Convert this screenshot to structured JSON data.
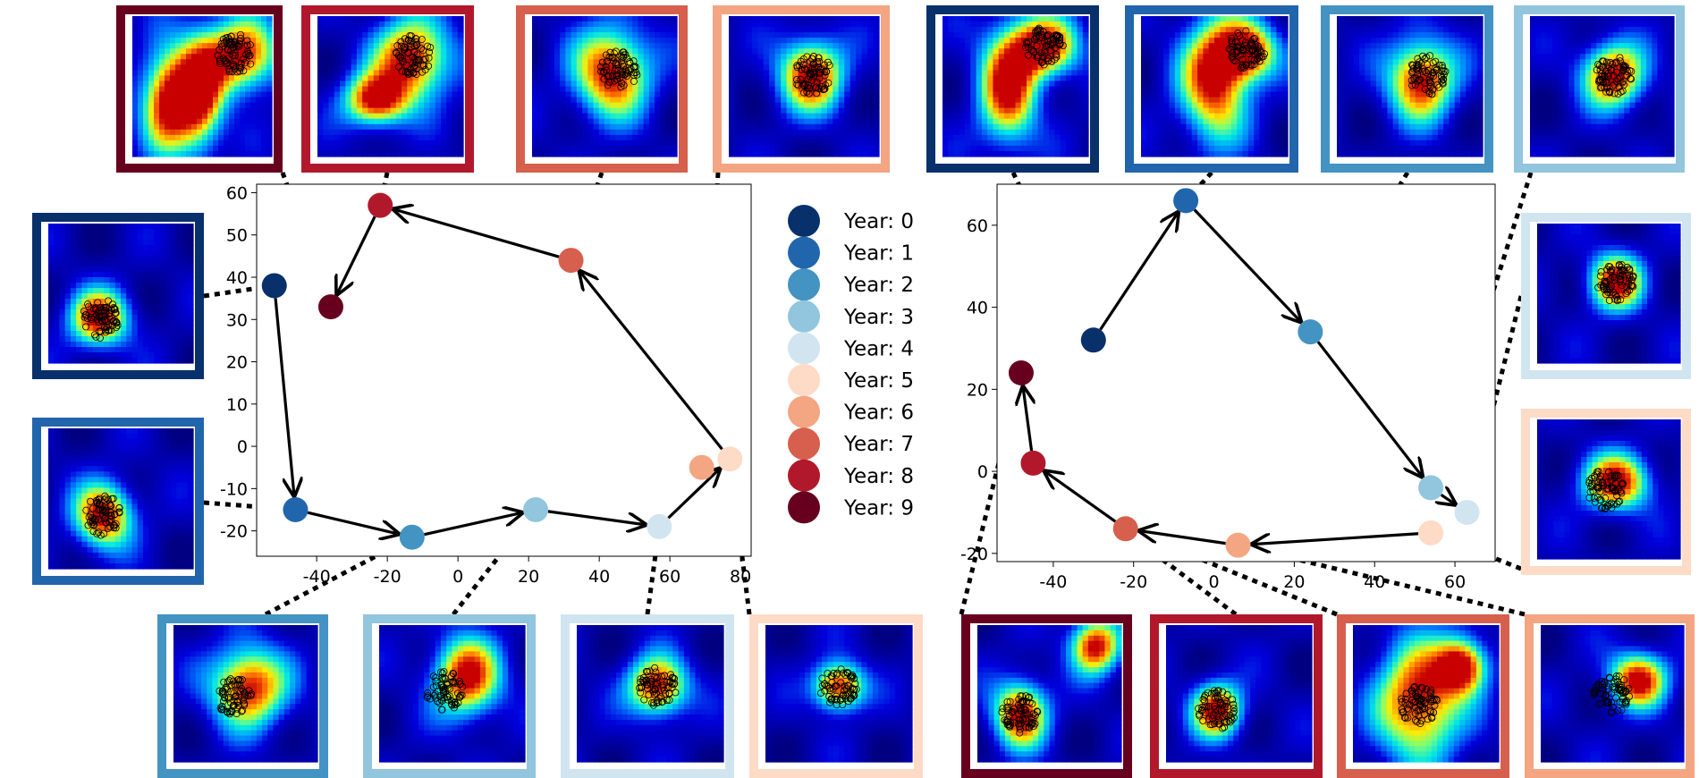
{
  "colors": {
    "year_0": "#08306b",
    "year_1": "#2166ac",
    "year_2": "#4393c3",
    "year_3": "#92c5de",
    "year_4": "#d1e5f0",
    "year_5": "#fddbc7",
    "year_6": "#f4a582",
    "year_7": "#d6604d",
    "year_8": "#b2182b",
    "year_9": "#67001f"
  },
  "legend": {
    "entries": [
      "Year: 0",
      "Year: 1",
      "Year: 2",
      "Year: 3",
      "Year: 4",
      "Year: 5",
      "Year: 6",
      "Year: 7",
      "Year: 8",
      "Year: 9"
    ]
  },
  "chart_data": [
    {
      "type": "scatter",
      "name": "left-trajectory",
      "title": "",
      "xlabel": "",
      "ylabel": "",
      "xlim": [
        -57,
        83
      ],
      "ylim": [
        -26,
        62
      ],
      "xticks": [
        -40,
        -20,
        0,
        20,
        40,
        60,
        80
      ],
      "yticks": [
        -20,
        -10,
        0,
        10,
        20,
        30,
        40,
        50,
        60
      ],
      "points": [
        {
          "year": 0,
          "x": -52,
          "y": 38
        },
        {
          "year": 1,
          "x": -46,
          "y": -15
        },
        {
          "year": 2,
          "x": -13,
          "y": -21.5
        },
        {
          "year": 3,
          "x": 22,
          "y": -15
        },
        {
          "year": 4,
          "x": 57,
          "y": -19
        },
        {
          "year": 5,
          "x": 77,
          "y": -3
        },
        {
          "year": 6,
          "x": 69,
          "y": -5
        },
        {
          "year": 7,
          "x": 32,
          "y": 44
        },
        {
          "year": 8,
          "x": -22,
          "y": 57
        },
        {
          "year": 9,
          "x": -36,
          "y": 33
        }
      ],
      "arrows": [
        [
          0,
          1
        ],
        [
          1,
          2
        ],
        [
          2,
          3
        ],
        [
          3,
          4
        ],
        [
          4,
          5
        ],
        [
          5,
          7
        ],
        [
          7,
          8
        ],
        [
          8,
          9
        ]
      ]
    },
    {
      "type": "scatter",
      "name": "right-trajectory",
      "title": "",
      "xlabel": "",
      "ylabel": "",
      "xlim": [
        -54,
        70
      ],
      "ylim": [
        -22,
        70
      ],
      "xticks": [
        -40,
        -20,
        0,
        20,
        40,
        60
      ],
      "yticks": [
        -20,
        0,
        20,
        40,
        60
      ],
      "points": [
        {
          "year": 0,
          "x": -30,
          "y": 32
        },
        {
          "year": 1,
          "x": -7,
          "y": 66
        },
        {
          "year": 2,
          "x": 24,
          "y": 34
        },
        {
          "year": 3,
          "x": 54,
          "y": -4
        },
        {
          "year": 4,
          "x": 63,
          "y": -10
        },
        {
          "year": 5,
          "x": 54,
          "y": -15
        },
        {
          "year": 6,
          "x": 6,
          "y": -18
        },
        {
          "year": 7,
          "x": -22,
          "y": -14
        },
        {
          "year": 8,
          "x": -45,
          "y": 2
        },
        {
          "year": 9,
          "x": -48,
          "y": 24
        }
      ],
      "arrows": [
        [
          0,
          1
        ],
        [
          1,
          2
        ],
        [
          2,
          3
        ],
        [
          3,
          4
        ],
        [
          5,
          6
        ],
        [
          6,
          7
        ],
        [
          7,
          8
        ],
        [
          8,
          9
        ]
      ]
    }
  ],
  "thumbnails": [
    {
      "year": 9,
      "chart": 0,
      "target": 9,
      "hot": [
        [
          0.25,
          0.6,
          0.13,
          0.25
        ],
        [
          0.48,
          0.55,
          0.12,
          0.28
        ],
        [
          0.78,
          0.28,
          0.18,
          0.18
        ]
      ],
      "cluster": [
        0.74,
        0.27
      ]
    },
    {
      "year": 8,
      "chart": 0,
      "target": 8,
      "hot": [
        [
          0.4,
          0.6,
          0.15,
          0.13
        ],
        [
          0.65,
          0.3,
          0.18,
          0.2
        ]
      ],
      "cluster": [
        0.66,
        0.28
      ]
    },
    {
      "year": 7,
      "chart": 0,
      "target": 7,
      "hot": [
        [
          0.55,
          0.4,
          0.18,
          0.22
        ]
      ],
      "cluster": [
        0.6,
        0.38
      ]
    },
    {
      "year": 6,
      "chart": 0,
      "target": 6,
      "hot": [
        [
          0.55,
          0.42,
          0.15,
          0.18
        ]
      ],
      "cluster": [
        0.56,
        0.42
      ]
    },
    {
      "year": 0,
      "chart": 1,
      "target": 0,
      "hot": [
        [
          0.45,
          0.5,
          0.14,
          0.28
        ],
        [
          0.7,
          0.22,
          0.16,
          0.15
        ]
      ],
      "cluster": [
        0.7,
        0.22
      ]
    },
    {
      "year": 1,
      "chart": 1,
      "target": 1,
      "hot": [
        [
          0.5,
          0.45,
          0.16,
          0.3
        ],
        [
          0.72,
          0.25,
          0.14,
          0.14
        ]
      ],
      "cluster": [
        0.72,
        0.24
      ]
    },
    {
      "year": 2,
      "chart": 1,
      "target": 2,
      "hot": [
        [
          0.58,
          0.45,
          0.16,
          0.2
        ]
      ],
      "cluster": [
        0.62,
        0.42
      ]
    },
    {
      "year": 3,
      "chart": 1,
      "target": 3,
      "hot": [
        [
          0.58,
          0.42,
          0.15,
          0.16
        ]
      ],
      "cluster": [
        0.58,
        0.42
      ]
    },
    {
      "year": 0,
      "chart": 0,
      "target": 0,
      "hot": [
        [
          0.35,
          0.68,
          0.14,
          0.14
        ]
      ],
      "cluster": [
        0.36,
        0.68
      ]
    },
    {
      "year": 1,
      "chart": 0,
      "target": 1,
      "hot": [
        [
          0.38,
          0.62,
          0.14,
          0.16
        ]
      ],
      "cluster": [
        0.38,
        0.62
      ]
    },
    {
      "year": 2,
      "chart": 0,
      "target": 2,
      "hot": [
        [
          0.52,
          0.45,
          0.18,
          0.2
        ]
      ],
      "cluster": [
        0.42,
        0.52
      ]
    },
    {
      "year": 3,
      "chart": 0,
      "target": 3,
      "hot": [
        [
          0.6,
          0.38,
          0.16,
          0.2
        ]
      ],
      "cluster": [
        0.45,
        0.48
      ]
    },
    {
      "year": 4,
      "chart": 0,
      "target": 4,
      "hot": [
        [
          0.55,
          0.45,
          0.14,
          0.15
        ]
      ],
      "cluster": [
        0.55,
        0.45
      ]
    },
    {
      "year": 5,
      "chart": 0,
      "target": 5,
      "hot": [
        [
          0.5,
          0.45,
          0.12,
          0.12
        ]
      ],
      "cluster": [
        0.5,
        0.45
      ]
    },
    {
      "year": 9,
      "chart": 1,
      "target": 9,
      "hot": [
        [
          0.3,
          0.65,
          0.13,
          0.17
        ],
        [
          0.82,
          0.15,
          0.12,
          0.14
        ]
      ],
      "cluster": [
        0.3,
        0.65
      ]
    },
    {
      "year": 8,
      "chart": 1,
      "target": 8,
      "hot": [
        [
          0.35,
          0.62,
          0.12,
          0.14
        ]
      ],
      "cluster": [
        0.35,
        0.62
      ]
    },
    {
      "year": 7,
      "chart": 1,
      "target": 7,
      "hot": [
        [
          0.45,
          0.55,
          0.2,
          0.3
        ],
        [
          0.75,
          0.3,
          0.12,
          0.14
        ]
      ],
      "cluster": [
        0.45,
        0.58
      ]
    },
    {
      "year": 6,
      "chart": 1,
      "target": 6,
      "hot": [
        [
          0.68,
          0.4,
          0.14,
          0.14
        ]
      ],
      "cluster": [
        0.5,
        0.5
      ]
    },
    {
      "year": 4,
      "chart": 1,
      "target": 4,
      "hot": [
        [
          0.55,
          0.42,
          0.13,
          0.14
        ]
      ],
      "cluster": [
        0.55,
        0.42
      ]
    },
    {
      "year": 5,
      "chart": 1,
      "target": 5,
      "hot": [
        [
          0.55,
          0.45,
          0.16,
          0.14
        ]
      ],
      "cluster": [
        0.48,
        0.5
      ]
    }
  ]
}
